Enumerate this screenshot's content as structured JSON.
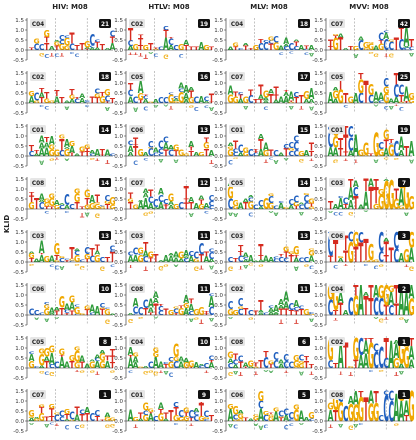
{
  "chart_data": {
    "type": "sequence-logo-grid",
    "ylabel": "KLID",
    "yticks": [
      -0.5,
      0.0,
      0.5,
      1.0,
      1.5
    ],
    "ylim": [
      -0.5,
      1.6
    ],
    "columns": [
      {
        "title": "HIV: M08",
        "panels": [
          {
            "cluster": "C04",
            "count": "21"
          },
          {
            "cluster": "C02",
            "count": "18"
          },
          {
            "cluster": "C01",
            "count": "14"
          },
          {
            "cluster": "C08",
            "count": "14"
          },
          {
            "cluster": "C03",
            "count": "13"
          },
          {
            "cluster": "C06",
            "count": "10"
          },
          {
            "cluster": "C05",
            "count": "8"
          },
          {
            "cluster": "C07",
            "count": "1"
          }
        ]
      },
      {
        "title": "HTLV: M08",
        "panels": [
          {
            "cluster": "C02",
            "count": "19"
          },
          {
            "cluster": "C05",
            "count": "16"
          },
          {
            "cluster": "C06",
            "count": "13"
          },
          {
            "cluster": "C07",
            "count": "12"
          },
          {
            "cluster": "C03",
            "count": "11"
          },
          {
            "cluster": "C08",
            "count": "11"
          },
          {
            "cluster": "C04",
            "count": "10"
          },
          {
            "cluster": "C01",
            "count": "9"
          }
        ]
      },
      {
        "title": "MLV: M08",
        "panels": [
          {
            "cluster": "C04",
            "count": "18"
          },
          {
            "cluster": "C07",
            "count": "17"
          },
          {
            "cluster": "C01",
            "count": "15"
          },
          {
            "cluster": "C05",
            "count": "14"
          },
          {
            "cluster": "C03",
            "count": "13"
          },
          {
            "cluster": "C02",
            "count": "11"
          },
          {
            "cluster": "C08",
            "count": "6"
          },
          {
            "cluster": "C06",
            "count": "5"
          }
        ]
      },
      {
        "title": "MVV: M08",
        "panels": [
          {
            "cluster": "C07",
            "count": "42"
          },
          {
            "cluster": "C05",
            "count": "25"
          },
          {
            "cluster": "C01",
            "count": "19"
          },
          {
            "cluster": "C03",
            "count": "7"
          },
          {
            "cluster": "C06",
            "count": "3"
          },
          {
            "cluster": "C04",
            "count": "2"
          },
          {
            "cluster": "C02",
            "count": "1"
          },
          {
            "cluster": "C08",
            "count": "1"
          }
        ]
      }
    ]
  },
  "colors": {
    "A": "#2e9b3a",
    "C": "#1f5fbf",
    "G": "#f0a800",
    "T": "#d62a1e",
    "badge_bg": "#111111",
    "badge_text": "#ffffff",
    "cluster_bg": "#e6e6e6",
    "axis": "#222222",
    "dashed": "#888888"
  }
}
